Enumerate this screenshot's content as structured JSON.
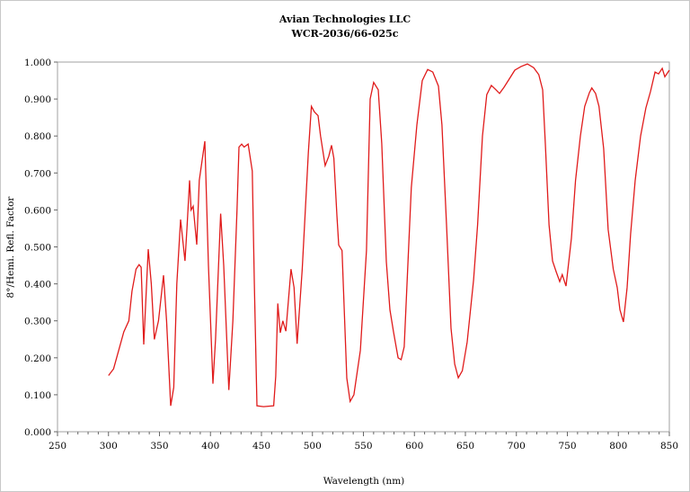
{
  "chart_data": {
    "type": "line",
    "title": "Avian Technologies LLC",
    "subtitle": "WCR-2036/66-025c",
    "xlabel": "Wavelength (nm)",
    "ylabel": "8°/Hemi. Refl. Factor",
    "xlim": [
      250,
      850
    ],
    "ylim": [
      0,
      1
    ],
    "xticks": [
      "250",
      "300",
      "350",
      "400",
      "450",
      "500",
      "550",
      "600",
      "650",
      "700",
      "750",
      "800",
      "850"
    ],
    "yticks": [
      "0.000",
      "0.100",
      "0.200",
      "0.300",
      "0.400",
      "0.500",
      "0.600",
      "0.700",
      "0.800",
      "0.900",
      "1.000"
    ],
    "grid": false,
    "line_color": "#e01b1b",
    "series": [
      {
        "x": [
          300,
          305,
          310,
          315,
          320,
          323,
          327,
          330,
          332,
          334.6,
          339,
          342,
          345,
          349,
          354,
          357,
          361,
          364,
          367,
          370.7,
          375,
          377,
          379.5,
          381,
          383,
          386.6,
          389,
          394.5,
          398,
          402.4,
          405,
          410,
          413,
          418,
          422,
          426,
          428,
          430.6,
          433,
          437,
          441,
          443,
          445.6,
          452,
          462,
          464,
          466,
          468.5,
          471,
          474,
          479,
          482,
          485,
          490,
          496,
          499,
          502,
          505.5,
          508,
          512.5,
          516,
          518.7,
          521,
          524,
          525.8,
          529,
          533.7,
          537,
          540.7,
          547,
          553,
          556.6,
          560,
          564.5,
          568,
          572.5,
          576,
          579.5,
          584,
          587,
          590,
          597,
          602.4,
          607.7,
          613,
          618,
          623.6,
          627,
          631.5,
          635.9,
          639.5,
          643,
          647,
          651.8,
          658,
          662,
          666.7,
          671,
          675.5,
          680,
          683.5,
          688,
          693,
          698.5,
          704.6,
          710.8,
          717,
          722,
          725.8,
          728.4,
          732,
          735.5,
          739,
          742.5,
          745,
          748.7,
          754,
          758,
          762.8,
          767,
          771.6,
          774,
          777.7,
          781,
          785.6,
          790,
          795,
          798.9,
          801.5,
          805,
          808.6,
          812,
          816.5,
          821.8,
          827,
          831.5,
          836,
          839.4,
          843,
          845.6,
          850
        ],
        "y": [
          0.152,
          0.17,
          0.22,
          0.27,
          0.3,
          0.38,
          0.44,
          0.452,
          0.445,
          0.236,
          0.494,
          0.4,
          0.25,
          0.3,
          0.423,
          0.3,
          0.07,
          0.12,
          0.4,
          0.574,
          0.462,
          0.55,
          0.68,
          0.6,
          0.61,
          0.506,
          0.68,
          0.786,
          0.45,
          0.13,
          0.25,
          0.59,
          0.45,
          0.113,
          0.3,
          0.6,
          0.77,
          0.778,
          0.77,
          0.778,
          0.705,
          0.4,
          0.07,
          0.068,
          0.07,
          0.15,
          0.347,
          0.268,
          0.3,
          0.272,
          0.44,
          0.39,
          0.238,
          0.44,
          0.755,
          0.88,
          0.865,
          0.855,
          0.8,
          0.72,
          0.745,
          0.775,
          0.74,
          0.585,
          0.505,
          0.49,
          0.145,
          0.082,
          0.1,
          0.22,
          0.49,
          0.9,
          0.945,
          0.925,
          0.78,
          0.46,
          0.33,
          0.27,
          0.2,
          0.195,
          0.23,
          0.66,
          0.83,
          0.95,
          0.98,
          0.973,
          0.935,
          0.83,
          0.56,
          0.28,
          0.183,
          0.146,
          0.165,
          0.243,
          0.41,
          0.56,
          0.8,
          0.912,
          0.937,
          0.925,
          0.915,
          0.932,
          0.954,
          0.978,
          0.988,
          0.995,
          0.985,
          0.966,
          0.925,
          0.778,
          0.56,
          0.462,
          0.433,
          0.406,
          0.425,
          0.394,
          0.523,
          0.68,
          0.8,
          0.88,
          0.917,
          0.93,
          0.915,
          0.88,
          0.766,
          0.547,
          0.44,
          0.39,
          0.33,
          0.297,
          0.39,
          0.535,
          0.68,
          0.8,
          0.876,
          0.92,
          0.973,
          0.968,
          0.983,
          0.96,
          0.978
        ]
      }
    ]
  }
}
